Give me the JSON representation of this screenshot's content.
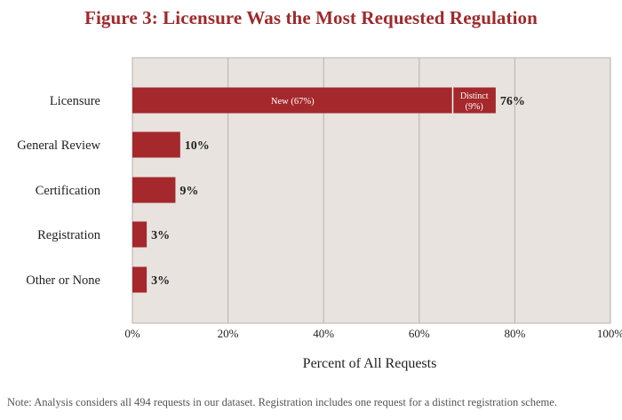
{
  "title": "Figure 3: Licensure Was the Most Requested Regulation",
  "note": "Note: Analysis considers all 494 requests in our dataset. Registration includes one request for a distinct registration scheme.",
  "colors": {
    "bar": "#a4282c",
    "plot_background": "#e8e3df",
    "grid": "#b7b1ad",
    "title": "#9e2a2b",
    "text": "#222222"
  },
  "chart_data": {
    "type": "bar",
    "orientation": "horizontal",
    "stacked": true,
    "title": "Figure 3: Licensure Was the Most Requested Regulation",
    "xlabel": "Percent of All Requests",
    "ylabel": "",
    "xlim": [
      0,
      100
    ],
    "x_ticks": [
      "0%",
      "20%",
      "40%",
      "60%",
      "80%",
      "100%"
    ],
    "x_tick_values": [
      0,
      20,
      40,
      60,
      80,
      100
    ],
    "grid": true,
    "categories": [
      "Licensure",
      "General Review",
      "Certification",
      "Registration",
      "Other or None"
    ],
    "bars": [
      {
        "category": "Licensure",
        "total": 76,
        "total_label": "76%",
        "segments": [
          {
            "name": "New",
            "value": 67,
            "label": "New (67%)"
          },
          {
            "name": "Distinct",
            "value": 9,
            "label": "Distinct (9%)"
          }
        ]
      },
      {
        "category": "General Review",
        "total": 10,
        "total_label": "10%",
        "segments": [
          {
            "name": "",
            "value": 10,
            "label": ""
          }
        ]
      },
      {
        "category": "Certification",
        "total": 9,
        "total_label": "9%",
        "segments": [
          {
            "name": "",
            "value": 9,
            "label": ""
          }
        ]
      },
      {
        "category": "Registration",
        "total": 3,
        "total_label": "3%",
        "segments": [
          {
            "name": "",
            "value": 3,
            "label": ""
          }
        ]
      },
      {
        "category": "Other or None",
        "total": 3,
        "total_label": "3%",
        "segments": [
          {
            "name": "",
            "value": 3,
            "label": ""
          }
        ]
      }
    ]
  }
}
